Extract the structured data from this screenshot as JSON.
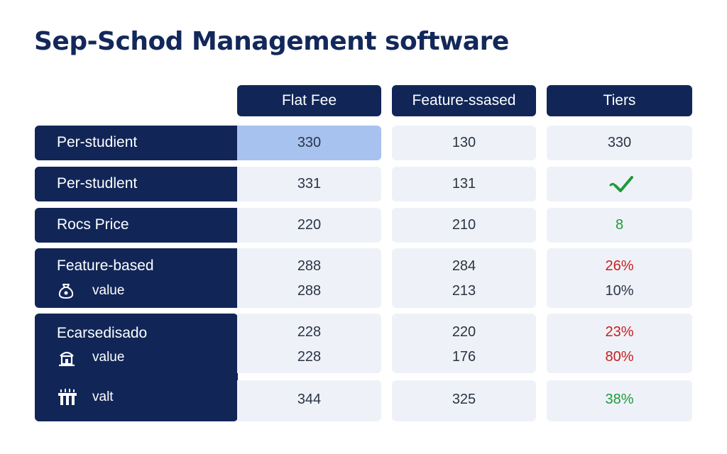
{
  "title": "Sep-Schod Management software",
  "columns": [
    "Flat Fee",
    "Feature-ssased",
    "Tiers"
  ],
  "rows": [
    {
      "label": "Per-studient",
      "values": [
        "330",
        "130",
        "330"
      ]
    },
    {
      "label": "Per-studlent",
      "values": [
        "331",
        "131",
        ""
      ],
      "tier_icon": "checkmark-icon"
    },
    {
      "label": "Rocs Price",
      "values": [
        "220",
        "210",
        "8"
      ]
    },
    {
      "label": "Feature-based",
      "values": [
        "288",
        "284",
        "26%"
      ],
      "sub": {
        "icon": "money-bag-icon",
        "label": "value",
        "values": [
          "288",
          "213",
          "10%"
        ]
      }
    },
    {
      "label": "Ecarsedisado",
      "values": [
        "228",
        "220",
        "23%"
      ],
      "sub": {
        "icon": "building-icon",
        "label": "value",
        "values": [
          "228",
          "176",
          "80%"
        ]
      },
      "sub2": {
        "icon": "pillars-icon",
        "label": "valt",
        "values": [
          "344",
          "325",
          "38%"
        ]
      }
    }
  ],
  "colors": {
    "navy": "#112657",
    "cell_bg": "#eef2f8",
    "highlight": "#a8c2f0",
    "red": "#c81e1e",
    "green": "#1d9a3a"
  }
}
